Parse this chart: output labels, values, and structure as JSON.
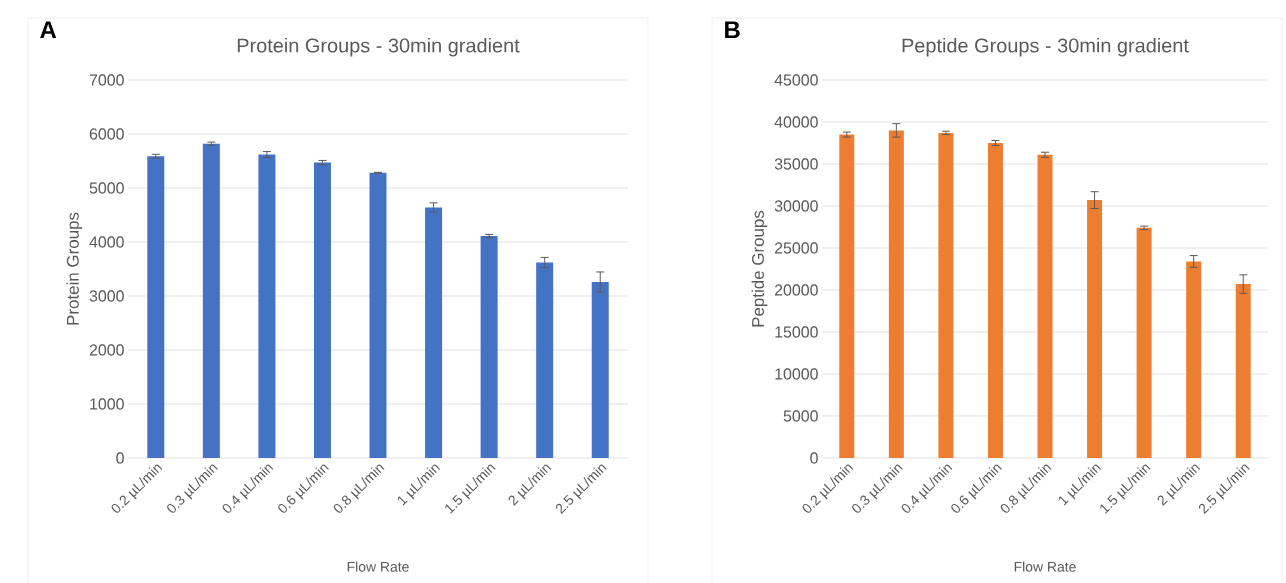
{
  "chart_data": [
    {
      "type": "bar",
      "title": "Protein Groups - 30min gradient",
      "xlabel": "Flow Rate",
      "ylabel": "Protein Groups",
      "annotations": [
        "A"
      ],
      "categories": [
        "0.2 µL/min",
        "0.3 µL/min",
        "0.4 µL/min",
        "0.6 µL/min",
        "0.8 µL/min",
        "1 µL/min",
        "1.5 µL/min",
        "2 µL/min",
        "2.5 µL/min"
      ],
      "values": [
        5590,
        5820,
        5620,
        5470,
        5280,
        4640,
        4110,
        3620,
        3260
      ],
      "errors": [
        35,
        30,
        55,
        40,
        10,
        85,
        30,
        95,
        185
      ],
      "color": "#4472c4",
      "ylim": [
        0,
        7000
      ],
      "yticks": [
        0,
        1000,
        2000,
        3000,
        4000,
        5000,
        6000,
        7000
      ],
      "grid": "y"
    },
    {
      "type": "bar",
      "title": "Peptide Groups - 30min gradient",
      "xlabel": "Flow Rate",
      "ylabel": "Peptide Groups",
      "annotations": [
        "B"
      ],
      "categories": [
        "0.2 µL/min",
        "0.3 µL/min",
        "0.4 µL/min",
        "0.6 µL/min",
        "0.8 µL/min",
        "1 µL/min",
        "1.5 µL/min",
        "2 µL/min",
        "2.5 µL/min"
      ],
      "values": [
        38500,
        39000,
        38700,
        37500,
        36100,
        30700,
        27400,
        23400,
        20700
      ],
      "errors": [
        300,
        800,
        200,
        300,
        300,
        1000,
        200,
        700,
        1100
      ],
      "color": "#ed7d31",
      "ylim": [
        0,
        45000
      ],
      "yticks": [
        0,
        5000,
        10000,
        15000,
        20000,
        25000,
        30000,
        35000,
        40000,
        45000
      ],
      "grid": "y"
    }
  ]
}
